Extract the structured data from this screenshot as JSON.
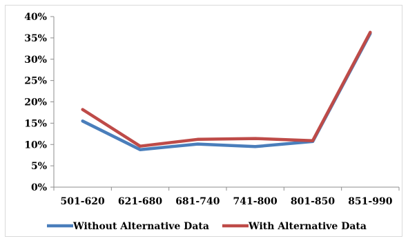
{
  "chart_data": {
    "type": "line",
    "categories": [
      "501-620",
      "621-680",
      "681-740",
      "741-800",
      "801-850",
      "851-990"
    ],
    "y_ticks": [
      "0%",
      "5%",
      "10%",
      "15%",
      "20%",
      "25%",
      "30%",
      "35%",
      "40%"
    ],
    "ylim": [
      0,
      40
    ],
    "grid": false,
    "legend_position": "bottom",
    "series": [
      {
        "name": "Without Alternative Data",
        "color": "#4a7ebb",
        "values": [
          15.5,
          8.8,
          10.1,
          9.5,
          10.7,
          36.0
        ]
      },
      {
        "name": "With Alternative Data",
        "color": "#be4b48",
        "values": [
          18.2,
          9.6,
          11.2,
          11.4,
          10.9,
          36.3
        ]
      }
    ]
  }
}
